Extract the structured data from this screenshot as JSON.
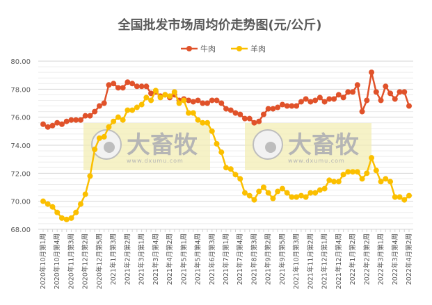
{
  "chart_data": {
    "type": "line",
    "title": "全国批发市场周均价走势图(元/公斤)",
    "xlabel": "",
    "ylabel": "",
    "ylim": [
      68,
      80
    ],
    "yticks": [
      "68.00",
      "70.00",
      "72.00",
      "74.00",
      "76.00",
      "78.00",
      "80.00"
    ],
    "grid": true,
    "legend_position": "top",
    "x_tick_labels": [
      "2020年10月第1周",
      "2020年10月第4周",
      "2020年11月第3周",
      "2020年12月第2周",
      "2020年12月第5周",
      "2021年1月第3周",
      "2021年2月第2周",
      "2021年3月第1周",
      "2021年3月第4周",
      "2021年4月第2周",
      "2021年5月第1周",
      "2021年5月第4周",
      "2021年6月第3周",
      "2021年7月第1周",
      "2021年7月第4周",
      "2021年8月第3周",
      "2021年9月第2周",
      "2021年9月第5周",
      "2021年10月第3周",
      "2021年11月第2周",
      "2021年12月第1周",
      "2021年12月第4周",
      "2022年1月第2周",
      "2022年2月第2周",
      "2022年3月第1周",
      "2022年3月第4周",
      "2022年4月第2周"
    ],
    "series": [
      {
        "name": "牛肉",
        "color": "#E0522A",
        "values": [
          75.5,
          75.3,
          75.4,
          75.6,
          75.5,
          75.7,
          75.8,
          75.8,
          75.8,
          76.1,
          76.1,
          76.4,
          76.8,
          77.0,
          78.3,
          78.4,
          78.1,
          78.1,
          78.5,
          78.4,
          78.2,
          78.2,
          78.2,
          77.7,
          77.8,
          77.5,
          77.6,
          77.4,
          77.6,
          77.2,
          77.3,
          77.2,
          77.1,
          77.2,
          77.0,
          77.0,
          77.2,
          77.2,
          77.0,
          76.6,
          76.5,
          76.3,
          76.2,
          75.9,
          75.9,
          75.6,
          75.7,
          76.2,
          76.6,
          76.6,
          76.7,
          76.9,
          76.8,
          76.8,
          76.8,
          77.1,
          77.3,
          77.1,
          77.2,
          77.4,
          77.1,
          77.3,
          77.3,
          77.6,
          77.4,
          77.8,
          77.8,
          78.3,
          76.4,
          77.2,
          79.2,
          77.8,
          77.2,
          78.2,
          77.7,
          77.3,
          77.8,
          77.8,
          76.8
        ]
      },
      {
        "name": "羊肉",
        "color": "#FBBF00",
        "values": [
          70.0,
          69.8,
          69.6,
          69.2,
          68.8,
          68.7,
          68.8,
          69.2,
          69.8,
          70.5,
          71.8,
          73.7,
          74.5,
          74.6,
          75.3,
          75.7,
          76.0,
          75.8,
          76.5,
          76.5,
          76.7,
          76.9,
          77.4,
          77.2,
          77.9,
          77.4,
          77.6,
          77.5,
          77.8,
          77.0,
          77.2,
          76.3,
          76.3,
          75.8,
          75.6,
          75.6,
          75.0,
          74.1,
          73.5,
          72.4,
          72.3,
          71.9,
          71.6,
          70.6,
          70.4,
          70.1,
          70.7,
          71.0,
          70.6,
          70.2,
          70.7,
          70.9,
          70.6,
          70.3,
          70.3,
          70.4,
          70.3,
          70.6,
          70.6,
          70.8,
          70.9,
          71.5,
          71.4,
          71.4,
          71.9,
          72.1,
          72.1,
          72.1,
          71.6,
          72.0,
          73.1,
          72.2,
          71.4,
          71.6,
          71.4,
          70.3,
          70.3,
          70.1,
          70.4
        ]
      }
    ]
  },
  "watermark": {
    "brand": "大畜牧",
    "url": "www.dxumu.com"
  }
}
